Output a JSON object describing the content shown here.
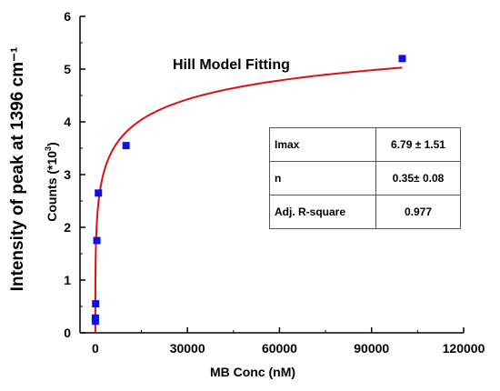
{
  "chart_data": {
    "type": "scatter",
    "title": "Hill Model Fitting",
    "xlabel": "MB Conc (nM)",
    "ylabel_outer": "Intensity of peak at 1396 cm⁻¹",
    "ylabel_inner": {
      "text": "Counts (*10",
      "sup": "3",
      "close": ")"
    },
    "xlim": [
      -5000,
      120000
    ],
    "ylim": [
      0,
      6
    ],
    "x_ticks": [
      0,
      30000,
      60000,
      90000,
      120000
    ],
    "y_ticks": [
      0,
      1,
      2,
      3,
      4,
      5,
      6
    ],
    "grid": false,
    "series": [
      {
        "marker": "square",
        "color": "#1010e0",
        "x": [
          1,
          10,
          100,
          500,
          1000,
          10000,
          100000
        ],
        "y": [
          0.22,
          0.28,
          0.55,
          1.75,
          2.65,
          3.55,
          5.2
        ]
      },
      {
        "kind": "fit_curve",
        "color": "#e01010",
        "model": "hill",
        "imax": 6.79,
        "n": 0.35,
        "k": 5000,
        "x_range": [
          0,
          100000
        ]
      }
    ],
    "table": [
      {
        "param": "Imax",
        "value": "6.79 ± 1.51"
      },
      {
        "param": "n",
        "value": "0.35± 0.08"
      },
      {
        "param": "Adj. R-square",
        "value": "0.977"
      }
    ]
  }
}
